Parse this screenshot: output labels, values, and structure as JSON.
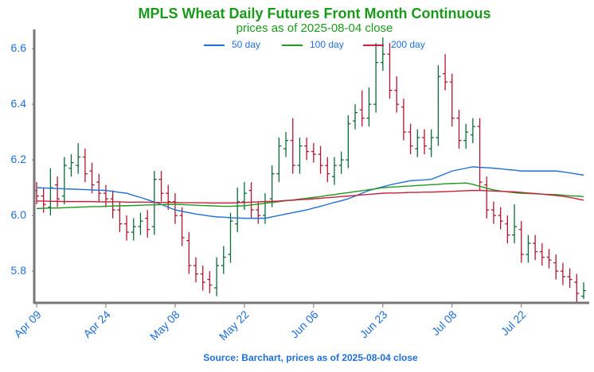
{
  "chart_data": {
    "type": "ohlc",
    "title": "MPLS Wheat Daily Futures Front Month Continuous",
    "subtitle": "prices as of 2025-08-04 close",
    "source": "Source: Barchart, prices as of 2025-08-04 close",
    "categories": [
      "Apr 09",
      null,
      null,
      null,
      null,
      null,
      null,
      null,
      null,
      null,
      "Apr 24",
      null,
      null,
      null,
      null,
      null,
      null,
      null,
      null,
      null,
      "May 08",
      null,
      null,
      null,
      null,
      null,
      null,
      null,
      null,
      null,
      "May 22",
      null,
      null,
      null,
      null,
      null,
      null,
      null,
      null,
      null,
      "Jun 06",
      null,
      null,
      null,
      null,
      null,
      null,
      null,
      null,
      null,
      "Jun 23",
      null,
      null,
      null,
      null,
      null,
      null,
      null,
      null,
      null,
      "Jul 08",
      null,
      null,
      null,
      null,
      null,
      null,
      null,
      null,
      null,
      "Jul 22",
      null,
      null,
      null,
      null,
      null,
      null,
      null,
      null,
      null
    ],
    "ohlc": {
      "up_color": "#0b6b38",
      "down_color": "#b3142e",
      "open": [
        6.09,
        6.07,
        6.03,
        6.11,
        6.07,
        6.17,
        6.18,
        6.21,
        6.16,
        6.12,
        6.08,
        6.06,
        6.02,
        5.97,
        5.94,
        5.96,
        5.99,
        5.96,
        6.13,
        6.08,
        6.05,
        6.0,
        5.91,
        5.82,
        5.79,
        5.77,
        5.74,
        5.82,
        5.86,
        5.97,
        6.05,
        6.09,
        6.02,
        6.0,
        6.06,
        6.15,
        6.24,
        6.27,
        6.18,
        6.25,
        6.23,
        6.22,
        6.18,
        6.14,
        6.18,
        6.2,
        6.34,
        6.38,
        6.35,
        6.4,
        6.55,
        6.58,
        6.45,
        6.39,
        6.3,
        6.24,
        6.28,
        6.24,
        6.28,
        6.51,
        6.48,
        6.35,
        6.27,
        6.29,
        6.32,
        6.11,
        6.02,
        6.0,
        5.97,
        5.93,
        5.95,
        5.86,
        5.9,
        5.87,
        5.85,
        5.83,
        5.8,
        5.78,
        5.76,
        5.71
      ],
      "high": [
        6.12,
        6.1,
        6.17,
        6.14,
        6.21,
        6.22,
        6.26,
        6.24,
        6.19,
        6.15,
        6.11,
        6.09,
        6.05,
        6.0,
        5.99,
        6.01,
        6.02,
        6.16,
        6.16,
        6.11,
        6.08,
        6.03,
        5.94,
        5.85,
        5.82,
        5.8,
        5.85,
        5.89,
        6.01,
        6.1,
        6.12,
        6.12,
        6.05,
        6.08,
        6.18,
        6.28,
        6.3,
        6.35,
        6.28,
        6.28,
        6.26,
        6.25,
        6.21,
        6.21,
        6.23,
        6.36,
        6.4,
        6.45,
        6.46,
        6.62,
        6.64,
        6.62,
        6.5,
        6.42,
        6.33,
        6.31,
        6.31,
        6.31,
        6.54,
        6.58,
        6.51,
        6.38,
        6.33,
        6.35,
        6.35,
        6.14,
        6.05,
        6.03,
        6.0,
        6.04,
        5.98,
        5.93,
        5.93,
        5.9,
        5.88,
        5.86,
        5.83,
        5.81,
        5.79,
        5.76
      ],
      "low": [
        6.04,
        6.01,
        6.0,
        6.03,
        6.04,
        6.14,
        6.15,
        6.12,
        6.08,
        6.05,
        6.03,
        5.99,
        5.94,
        5.91,
        5.91,
        5.93,
        5.92,
        5.93,
        6.05,
        6.02,
        5.97,
        5.89,
        5.79,
        5.76,
        5.73,
        5.72,
        5.71,
        5.79,
        5.83,
        5.94,
        6.02,
        5.99,
        5.97,
        5.97,
        6.03,
        6.12,
        6.21,
        6.15,
        6.15,
        6.2,
        6.19,
        6.15,
        6.12,
        6.11,
        6.15,
        6.17,
        6.31,
        6.32,
        6.32,
        6.37,
        6.52,
        6.42,
        6.37,
        6.27,
        6.22,
        6.21,
        6.22,
        6.21,
        6.25,
        6.45,
        6.32,
        6.24,
        6.24,
        6.26,
        6.09,
        5.99,
        5.97,
        5.95,
        5.9,
        5.9,
        5.83,
        5.83,
        5.84,
        5.82,
        5.81,
        5.77,
        5.75,
        5.74,
        5.69,
        5.7
      ],
      "close": [
        6.07,
        6.04,
        6.1,
        6.06,
        6.18,
        6.19,
        6.21,
        6.15,
        6.11,
        6.08,
        6.06,
        6.02,
        5.97,
        5.94,
        5.96,
        5.98,
        5.95,
        6.13,
        6.08,
        6.05,
        6.0,
        5.92,
        5.82,
        5.79,
        5.76,
        5.75,
        5.82,
        5.85,
        5.98,
        6.05,
        6.08,
        6.02,
        6.0,
        6.05,
        6.15,
        6.25,
        6.27,
        6.18,
        6.25,
        6.23,
        6.22,
        6.18,
        6.15,
        6.18,
        6.2,
        6.33,
        6.37,
        6.35,
        6.4,
        6.55,
        6.58,
        6.45,
        6.4,
        6.3,
        6.25,
        6.28,
        6.25,
        6.28,
        6.5,
        6.48,
        6.35,
        6.27,
        6.3,
        6.32,
        6.12,
        6.02,
        6.0,
        5.98,
        5.93,
        5.96,
        5.86,
        5.9,
        5.87,
        5.85,
        5.84,
        5.8,
        5.78,
        5.77,
        5.72,
        5.73
      ]
    },
    "series": [
      {
        "name": "50 day",
        "color": "#1f6fd6",
        "values": [
          6.1,
          6.099,
          6.098,
          6.097,
          6.096,
          6.095,
          6.094,
          6.093,
          6.092,
          6.091,
          6.09,
          6.087,
          6.083,
          6.08,
          6.072,
          6.065,
          6.057,
          6.048,
          6.04,
          6.03,
          6.02,
          6.015,
          6.01,
          6.005,
          6.002,
          5.998,
          5.995,
          5.994,
          5.992,
          5.991,
          5.99,
          5.99,
          5.99,
          5.99,
          5.995,
          6.0,
          6.005,
          6.01,
          6.015,
          6.02,
          6.027,
          6.033,
          6.04,
          6.047,
          6.053,
          6.06,
          6.07,
          6.08,
          6.09,
          6.097,
          6.103,
          6.11,
          6.115,
          6.12,
          6.125,
          6.127,
          6.128,
          6.13,
          6.14,
          6.15,
          6.16,
          6.165,
          6.17,
          6.175,
          6.173,
          6.172,
          6.17,
          6.168,
          6.165,
          6.163,
          6.16,
          6.16,
          6.16,
          6.16,
          6.16,
          6.16,
          6.157,
          6.153,
          6.149,
          6.145
        ]
      },
      {
        "name": "100 day",
        "color": "#1f9a1f",
        "values": [
          6.025,
          6.026,
          6.027,
          6.027,
          6.028,
          6.029,
          6.03,
          6.031,
          6.032,
          6.032,
          6.033,
          6.034,
          6.035,
          6.035,
          6.036,
          6.037,
          6.038,
          6.038,
          6.039,
          6.04,
          6.04,
          6.039,
          6.038,
          6.037,
          6.036,
          6.035,
          6.034,
          6.033,
          6.033,
          6.034,
          6.035,
          6.038,
          6.041,
          6.044,
          6.047,
          6.05,
          6.053,
          6.056,
          6.059,
          6.062,
          6.065,
          6.068,
          6.072,
          6.075,
          6.079,
          6.082,
          6.086,
          6.089,
          6.093,
          6.096,
          6.1,
          6.102,
          6.103,
          6.105,
          6.106,
          6.108,
          6.109,
          6.111,
          6.112,
          6.114,
          6.115,
          6.116,
          6.117,
          6.112,
          6.105,
          6.098,
          6.092,
          6.088,
          6.085,
          6.082,
          6.08,
          6.079,
          6.078,
          6.077,
          6.076,
          6.075,
          6.073,
          6.071,
          6.07,
          6.068
        ]
      },
      {
        "name": "200 day",
        "color": "#cc1f3a",
        "values": [
          6.052,
          6.052,
          6.051,
          6.051,
          6.05,
          6.05,
          6.05,
          6.05,
          6.05,
          6.049,
          6.049,
          6.049,
          6.049,
          6.048,
          6.048,
          6.048,
          6.048,
          6.047,
          6.047,
          6.047,
          6.047,
          6.046,
          6.046,
          6.046,
          6.046,
          6.045,
          6.045,
          6.045,
          6.045,
          6.046,
          6.047,
          6.048,
          6.049,
          6.05,
          6.051,
          6.052,
          6.054,
          6.055,
          6.057,
          6.058,
          6.06,
          6.062,
          6.064,
          6.066,
          6.068,
          6.07,
          6.072,
          6.074,
          6.076,
          6.078,
          6.08,
          6.081,
          6.081,
          6.082,
          6.083,
          6.083,
          6.084,
          6.084,
          6.085,
          6.086,
          6.087,
          6.088,
          6.089,
          6.09,
          6.09,
          6.089,
          6.088,
          6.087,
          6.086,
          6.085,
          6.083,
          6.081,
          6.079,
          6.077,
          6.074,
          6.072,
          6.069,
          6.065,
          6.06,
          6.055
        ]
      }
    ],
    "ylim": [
      5.686,
      6.669
    ],
    "yticks": [
      5.8,
      {
        "value": 6,
        "label": "6.0"
      },
      6.2,
      6.4,
      6.6
    ],
    "grid": false,
    "legend": "top"
  }
}
